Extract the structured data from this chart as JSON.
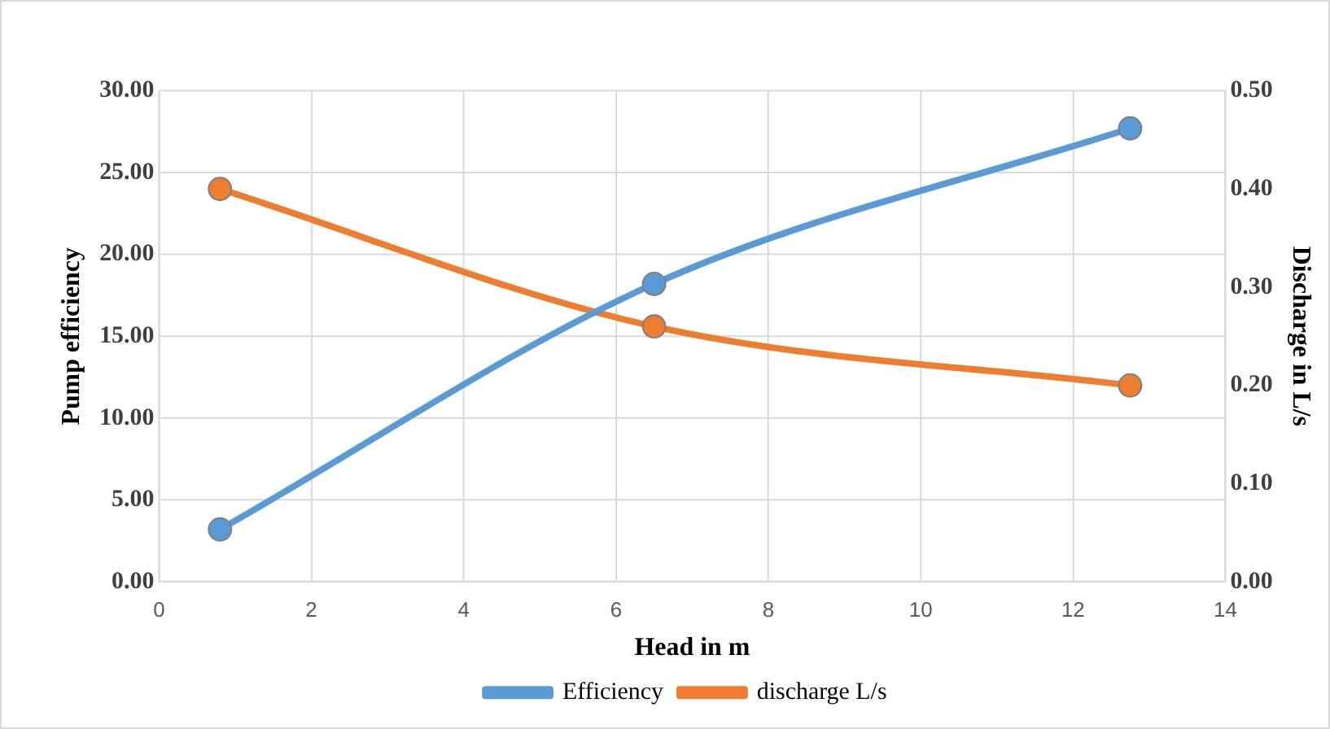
{
  "chart_data": {
    "type": "line",
    "xlabel": "Head in m",
    "ylabel": "Pump efficiency",
    "y2label": "Discharge in L/s",
    "series": [
      {
        "name": "Efficiency",
        "color": "#5b9bd5",
        "x": [
          0.8,
          6.5,
          12.75
        ],
        "values": [
          3.2,
          18.2,
          27.7
        ]
      },
      {
        "name": "discharge L/s",
        "color": "#ed7d31",
        "x": [
          0.8,
          6.5,
          12.75
        ],
        "values": [
          0.4,
          0.26,
          0.2
        ],
        "axis": "y2"
      }
    ],
    "xlim": [
      0,
      14
    ],
    "xticks": [
      0,
      2,
      4,
      6,
      8,
      10,
      12,
      14
    ],
    "ylim": [
      0,
      30
    ],
    "yticks": [
      {
        "value": 0,
        "label": "0.00"
      },
      {
        "value": 5,
        "label": "5.00"
      },
      {
        "value": 10,
        "label": "10.00"
      },
      {
        "value": 15,
        "label": "15.00"
      },
      {
        "value": 20,
        "label": "20.00"
      },
      {
        "value": 25,
        "label": "25.00"
      },
      {
        "value": 30,
        "label": "30.00"
      }
    ],
    "y2lim": [
      0,
      0.5
    ],
    "y2ticks": [
      {
        "value": 0,
        "label": "0.00"
      },
      {
        "value": 0.1,
        "label": "0.10"
      },
      {
        "value": 0.2,
        "label": "0.20"
      },
      {
        "value": 0.3,
        "label": "0.30"
      },
      {
        "value": 0.4,
        "label": "0.40"
      },
      {
        "value": 0.5,
        "label": "0.50"
      }
    ],
    "grid": true,
    "legend": "bottom",
    "marker": "circle",
    "line_style": "solid"
  }
}
